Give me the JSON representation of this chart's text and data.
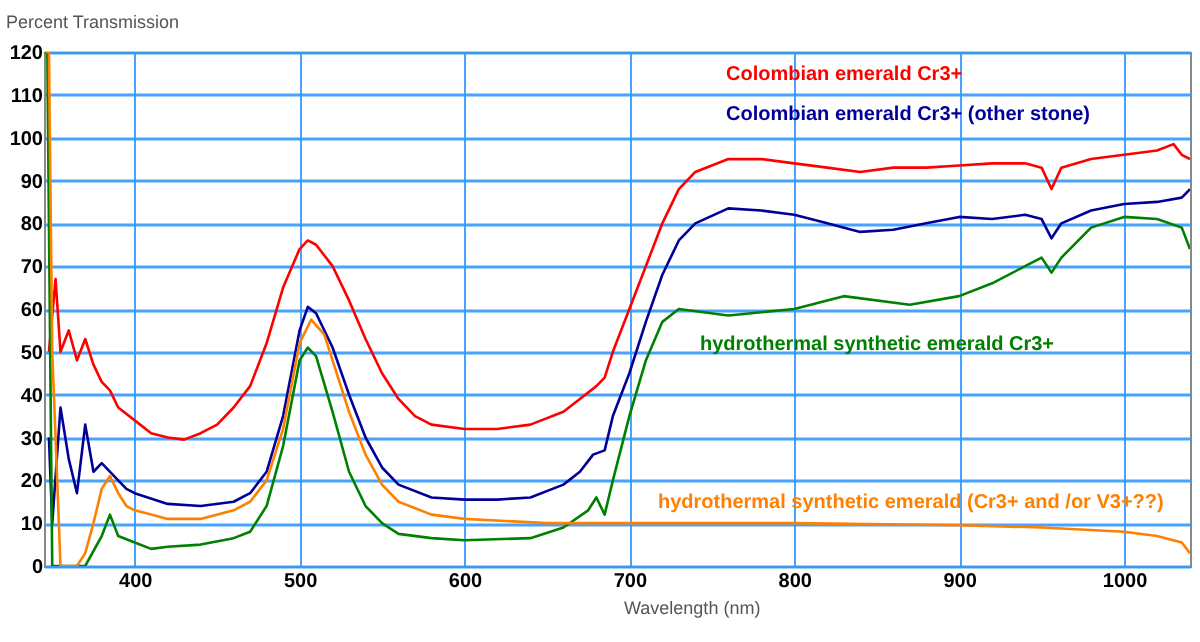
{
  "chart_data": {
    "type": "line",
    "xlabel": "Wavelength (nm)",
    "ylabel": "Percent Transmission",
    "xlim": [
      345,
      1040
    ],
    "ylim": [
      0,
      120
    ],
    "xticks": [
      400,
      500,
      600,
      700,
      800,
      900,
      1000
    ],
    "yticks": [
      0,
      10,
      20,
      30,
      40,
      50,
      60,
      70,
      80,
      90,
      100,
      110,
      120
    ],
    "grid": true,
    "marker": "none",
    "line_style": "solid",
    "series": [
      {
        "name": "Colombian emerald Cr3+",
        "color": "#ff0000",
        "x": [
          348,
          352,
          355,
          360,
          365,
          370,
          375,
          380,
          385,
          390,
          400,
          410,
          420,
          430,
          440,
          450,
          460,
          470,
          480,
          490,
          500,
          505,
          510,
          520,
          530,
          540,
          550,
          560,
          570,
          580,
          600,
          620,
          640,
          660,
          670,
          680,
          685,
          690,
          700,
          710,
          720,
          730,
          740,
          760,
          780,
          800,
          820,
          840,
          860,
          880,
          900,
          920,
          940,
          950,
          956,
          962,
          980,
          1000,
          1020,
          1030,
          1035,
          1040
        ],
        "values": [
          50,
          67,
          50,
          55,
          48,
          53,
          47,
          43,
          41,
          37,
          34,
          31,
          30,
          29.5,
          31,
          33,
          37,
          42,
          52,
          65,
          74,
          76,
          75,
          70,
          62,
          53,
          45,
          39,
          35,
          33,
          32,
          32,
          33,
          36,
          39,
          42,
          44,
          50,
          60,
          70,
          80,
          88,
          92,
          95,
          95,
          94,
          93,
          92,
          93,
          93,
          93.5,
          94,
          94,
          93,
          88,
          93,
          95,
          96,
          97,
          98.5,
          96,
          95
        ]
      },
      {
        "name": "Colombian emerald Cr3+ (other stone)",
        "color": "#000099",
        "x": [
          348,
          350,
          355,
          360,
          365,
          370,
          375,
          380,
          390,
          395,
          400,
          420,
          440,
          460,
          470,
          480,
          490,
          500,
          505,
          510,
          520,
          530,
          540,
          550,
          560,
          580,
          600,
          620,
          640,
          660,
          670,
          678,
          685,
          690,
          700,
          710,
          720,
          730,
          740,
          760,
          780,
          800,
          820,
          840,
          860,
          880,
          900,
          920,
          940,
          950,
          956,
          962,
          980,
          1000,
          1020,
          1035,
          1040
        ],
        "values": [
          30,
          10,
          37,
          25,
          17,
          33,
          22,
          24,
          20,
          18,
          17,
          14.5,
          14,
          15,
          17,
          22,
          35,
          55,
          60.5,
          59,
          51,
          40,
          30,
          23,
          19,
          16,
          15.5,
          15.5,
          16,
          19,
          22,
          26,
          27,
          35,
          45,
          57,
          68,
          76,
          80,
          83.5,
          83,
          82,
          80,
          78,
          78.5,
          80,
          81.5,
          81,
          82,
          81,
          76.5,
          80,
          83,
          84.5,
          85,
          86,
          88
        ]
      },
      {
        "name": "hydrothermal synthetic emerald Cr3+",
        "color": "#008000",
        "x": [
          345,
          347,
          350,
          360,
          370,
          380,
          385,
          390,
          400,
          410,
          420,
          440,
          460,
          470,
          480,
          490,
          500,
          505,
          510,
          520,
          530,
          540,
          550,
          560,
          580,
          600,
          640,
          660,
          675,
          680,
          685,
          690,
          700,
          710,
          720,
          730,
          760,
          800,
          830,
          870,
          900,
          920,
          940,
          950,
          956,
          962,
          980,
          1000,
          1020,
          1035,
          1040
        ],
        "values": [
          120,
          120,
          0,
          0,
          0,
          7,
          12,
          7,
          5.5,
          4,
          4.5,
          5,
          6.5,
          8,
          14,
          28,
          48,
          51,
          49,
          36,
          22,
          14,
          10,
          7.5,
          6.5,
          6,
          6.5,
          9,
          13,
          16,
          12,
          20,
          35,
          48,
          57,
          60,
          58.5,
          60,
          63,
          61,
          63,
          66,
          70,
          72,
          68.5,
          72,
          79,
          81.5,
          81,
          79,
          74
        ]
      },
      {
        "name": "hydrothermal synthetic emerald (Cr3+ and /or V3+??)",
        "color": "#ff8000",
        "x": [
          346,
          348,
          350,
          355,
          360,
          365,
          370,
          375,
          380,
          385,
          390,
          395,
          400,
          410,
          420,
          440,
          460,
          470,
          480,
          490,
          500,
          507,
          515,
          520,
          530,
          540,
          550,
          560,
          580,
          600,
          650,
          700,
          800,
          900,
          950,
          1000,
          1020,
          1035,
          1040
        ],
        "values": [
          120,
          120,
          50,
          0,
          0,
          0,
          3,
          10,
          18,
          21,
          17,
          14,
          13,
          12,
          11,
          11,
          13,
          15,
          20,
          32,
          52,
          57.5,
          54,
          48,
          36,
          26,
          19,
          15,
          12,
          11,
          10,
          10,
          10,
          9.5,
          9,
          8,
          7,
          5.5,
          3
        ]
      }
    ]
  }
}
